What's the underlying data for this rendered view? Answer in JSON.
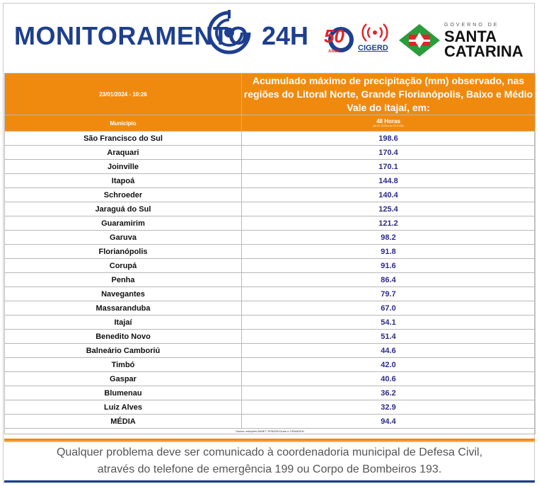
{
  "header": {
    "brand_left": "MONITORAMENTO",
    "brand_right": "24H",
    "logo50_number": "50",
    "logo50_sub": "ANOS",
    "cigerd_label": "CIGERD",
    "gov_label": "GOVERNO DE",
    "state_line1": "SANTA",
    "state_line2": "CATARINA",
    "colors": {
      "brand": "#1e3f8f",
      "accent": "#f08a0e",
      "red": "#e0262b",
      "green": "#2a9c3c"
    }
  },
  "table": {
    "datetime": "23/01/2024 - 10:26",
    "title": "Acumulado máximo de precipitação (mm) observado, nas regiões do Litoral Norte, Grande Florianópolis, Baixo e Médio Vale do Itajaí, em:",
    "col_municipio": "Município",
    "col_hours": "48 Horas",
    "col_hours_sub": "(de 21 10:26 a de 23 10:26)",
    "rows": [
      {
        "municipio": "São Francisco do Sul",
        "valor": "198.6"
      },
      {
        "municipio": "Araquari",
        "valor": "170.4"
      },
      {
        "municipio": "Joinville",
        "valor": "170.1"
      },
      {
        "municipio": "Itapoá",
        "valor": "144.8"
      },
      {
        "municipio": "Schroeder",
        "valor": "140.4"
      },
      {
        "municipio": "Jaraguá do Sul",
        "valor": "125.4"
      },
      {
        "municipio": "Guaramirim",
        "valor": "121.2"
      },
      {
        "municipio": "Garuva",
        "valor": "98.2"
      },
      {
        "municipio": "Florianópolis",
        "valor": "91.8"
      },
      {
        "municipio": "Corupá",
        "valor": "91.6"
      },
      {
        "municipio": "Penha",
        "valor": "86.4"
      },
      {
        "municipio": "Navegantes",
        "valor": "79.7"
      },
      {
        "municipio": "Massaranduba",
        "valor": "67.0"
      },
      {
        "municipio": "Itajaí",
        "valor": "54.1"
      },
      {
        "municipio": "Benedito Novo",
        "valor": "51.4"
      },
      {
        "municipio": "Balneário Camboriú",
        "valor": "44.6"
      },
      {
        "municipio": "Timbó",
        "valor": "42.0"
      },
      {
        "municipio": "Gaspar",
        "valor": "40.6"
      },
      {
        "municipio": "Blumenau",
        "valor": "36.2"
      },
      {
        "municipio": "Luiz Alves",
        "valor": "32.9"
      },
      {
        "municipio": "MÉDIA",
        "valor": "94.4"
      }
    ],
    "source": "Dados: estações INMET, EPAGRI/Ciram e CEMADEN"
  },
  "notice": {
    "line1": "Qualquer problema deve ser comunicado à coordenadoria municipal de Defesa Civil,",
    "line2": "através do telefone de emergência 199 ou Corpo de Bombeiros 193."
  }
}
